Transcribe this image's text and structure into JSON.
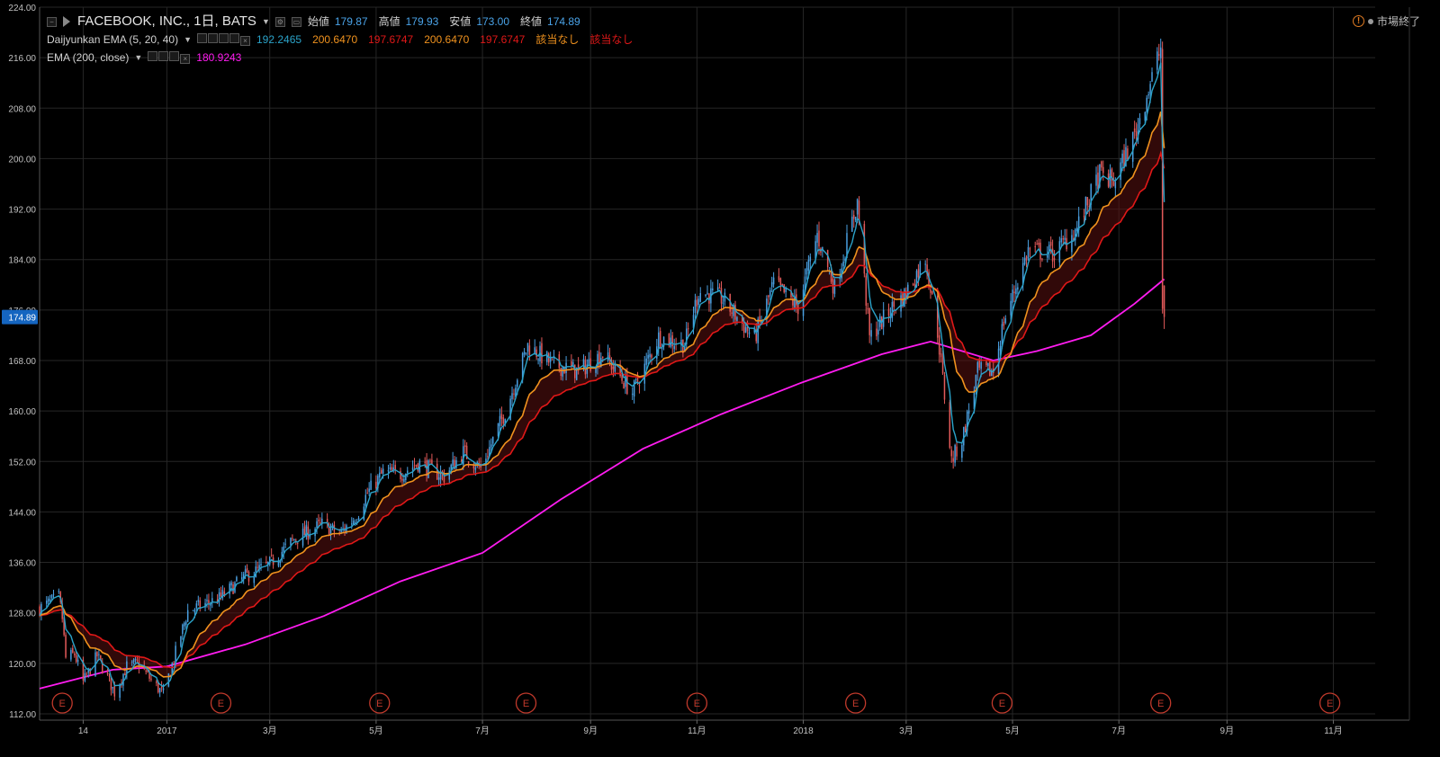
{
  "legend": {
    "symbol": "FACEBOOK, INC., 1日, BATS",
    "open_label": "始値",
    "open": "179.87",
    "high_label": "高値",
    "high": "179.93",
    "low_label": "安値",
    "low": "173.00",
    "close_label": "終値",
    "close": "174.89",
    "indicator1": "Daijyunkan EMA (5, 20, 40)",
    "ind1_values": [
      "192.2465",
      "200.6470",
      "197.6747",
      "200.6470",
      "197.6747",
      "該当なし",
      "該当なし"
    ],
    "indicator2": "EMA (200, close)",
    "ind2_value": "180.9243"
  },
  "market_status": "市場終了",
  "price_tag": "174.89",
  "colors": {
    "background": "#000000",
    "grid": "#262626",
    "candle_up": "#4a9fe0",
    "candle_down": "#e25a5a",
    "ema5": "#2ba3c9",
    "ema20": "#f0921e",
    "ema40": "#e01818",
    "ema200": "#ff1cf0",
    "price_tag": "#1565c0",
    "earnings": "#c0392b"
  },
  "chart_data": {
    "type": "candlestick",
    "x_axis_labels": [
      "14",
      "2017",
      "3月",
      "5月",
      "7月",
      "9月",
      "11月",
      "2018",
      "3月",
      "5月",
      "7月",
      "9月",
      "11月"
    ],
    "x_axis_label_dates": [
      "2016-11-14",
      "2017-01-01",
      "2017-03-01",
      "2017-05-01",
      "2017-07-01",
      "2017-09-01",
      "2017-11-01",
      "2018-01-01",
      "2018-03-01",
      "2018-05-01",
      "2018-07-01",
      "2018-09-01",
      "2018-11-01"
    ],
    "y_axis_ticks": [
      "224.00",
      "216.00",
      "208.00",
      "200.00",
      "192.00",
      "184.00",
      "176.00",
      "168.00",
      "160.00",
      "152.00",
      "144.00",
      "136.00",
      "128.00",
      "120.00",
      "112.00"
    ],
    "ylim": [
      111,
      224
    ],
    "x_range": [
      "2016-10-20",
      "2018-11-25"
    ],
    "close_anchors": [
      [
        "2016-10-20",
        128.7
      ],
      [
        "2016-10-31",
        130.5
      ],
      [
        "2016-11-02",
        127.2
      ],
      [
        "2016-11-04",
        120.8
      ],
      [
        "2016-11-09",
        121.5
      ],
      [
        "2016-11-14",
        117.0
      ],
      [
        "2016-11-22",
        121.2
      ],
      [
        "2016-12-02",
        115.4
      ],
      [
        "2016-12-09",
        119.5
      ],
      [
        "2016-12-16",
        120.0
      ],
      [
        "2016-12-23",
        117.3
      ],
      [
        "2016-12-30",
        115.1
      ],
      [
        "2017-01-13",
        128.3
      ],
      [
        "2017-01-31",
        130.3
      ],
      [
        "2017-02-15",
        133.8
      ],
      [
        "2017-02-28",
        135.5
      ],
      [
        "2017-03-15",
        139.7
      ],
      [
        "2017-03-31",
        142.0
      ],
      [
        "2017-04-10",
        140.5
      ],
      [
        "2017-04-20",
        143.5
      ],
      [
        "2017-04-26",
        147.0
      ],
      [
        "2017-05-05",
        150.2
      ],
      [
        "2017-05-15",
        150.0
      ],
      [
        "2017-05-25",
        151.8
      ],
      [
        "2017-06-09",
        149.6
      ],
      [
        "2017-06-20",
        153.5
      ],
      [
        "2017-06-30",
        150.9
      ],
      [
        "2017-07-14",
        159.9
      ],
      [
        "2017-07-27",
        170.4
      ],
      [
        "2017-08-10",
        167.4
      ],
      [
        "2017-08-25",
        166.3
      ],
      [
        "2017-09-08",
        169.1
      ],
      [
        "2017-09-25",
        162.9
      ],
      [
        "2017-10-10",
        171.7
      ],
      [
        "2017-10-25",
        170.6
      ],
      [
        "2017-11-02",
        178.9
      ],
      [
        "2017-11-15",
        177.9
      ],
      [
        "2017-12-04",
        171.5
      ],
      [
        "2017-12-15",
        180.2
      ],
      [
        "2017-12-29",
        176.5
      ],
      [
        "2018-01-09",
        187.9
      ],
      [
        "2018-01-19",
        179.4
      ],
      [
        "2018-02-01",
        193.1
      ],
      [
        "2018-02-08",
        171.6
      ],
      [
        "2018-02-20",
        176.0
      ],
      [
        "2018-02-28",
        178.3
      ],
      [
        "2018-03-12",
        184.3
      ],
      [
        "2018-03-19",
        172.6
      ],
      [
        "2018-03-27",
        152.2
      ],
      [
        "2018-04-02",
        155.4
      ],
      [
        "2018-04-11",
        166.3
      ],
      [
        "2018-04-20",
        166.3
      ],
      [
        "2018-04-26",
        174.2
      ],
      [
        "2018-05-10",
        185.5
      ],
      [
        "2018-05-25",
        184.9
      ],
      [
        "2018-06-07",
        189.0
      ],
      [
        "2018-06-20",
        197.5
      ],
      [
        "2018-06-28",
        196.3
      ],
      [
        "2018-07-10",
        203.7
      ],
      [
        "2018-07-25",
        217.5
      ],
      [
        "2018-07-26",
        176.3
      ],
      [
        "2018-07-27",
        174.9
      ]
    ],
    "ema200_anchors": [
      [
        "2016-10-20",
        116.0
      ],
      [
        "2016-12-01",
        119.0
      ],
      [
        "2017-01-01",
        119.5
      ],
      [
        "2017-02-15",
        123.0
      ],
      [
        "2017-04-01",
        127.5
      ],
      [
        "2017-05-15",
        133.0
      ],
      [
        "2017-07-01",
        137.5
      ],
      [
        "2017-08-15",
        146.0
      ],
      [
        "2017-10-01",
        154.0
      ],
      [
        "2017-11-15",
        159.5
      ],
      [
        "2017-12-31",
        164.5
      ],
      [
        "2018-02-15",
        169.0
      ],
      [
        "2018-03-15",
        171.0
      ],
      [
        "2018-04-20",
        168.0
      ],
      [
        "2018-05-15",
        169.5
      ],
      [
        "2018-06-15",
        172.0
      ],
      [
        "2018-07-10",
        177.0
      ],
      [
        "2018-07-27",
        180.9
      ]
    ],
    "earnings_markers": [
      "E",
      "E",
      "E",
      "E",
      "E",
      "E",
      "E",
      "E",
      "E"
    ],
    "earnings_dates": [
      "2016-11-02",
      "2017-02-01",
      "2017-05-03",
      "2017-07-26",
      "2017-11-01",
      "2018-01-31",
      "2018-04-25",
      "2018-07-25",
      "2018-10-30"
    ]
  }
}
